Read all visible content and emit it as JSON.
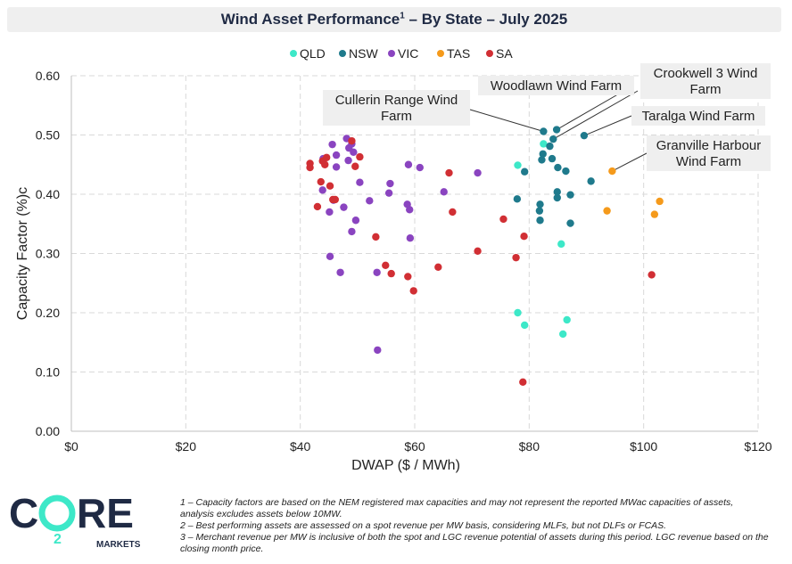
{
  "title": "Wind Asset Performance",
  "title_sup": "1",
  "title_rest": " – By State – July 2025",
  "colors": {
    "QLD": "#3de8c8",
    "NSW": "#1f7a8c",
    "VIC": "#8a44c0",
    "TAS": "#f59a1b",
    "SA": "#d12f34",
    "label_bg": "#efefef",
    "grid": "#d9d9d9"
  },
  "chart_data": {
    "type": "scatter",
    "title": "Wind Asset Performance¹ – By State – July 2025",
    "xlabel": "DWAP ($ / MWh)",
    "ylabel": "Capacity Factor (%)c",
    "xlim": [
      0,
      120
    ],
    "ylim": [
      0,
      0.6
    ],
    "x_ticks": [
      0,
      20,
      40,
      60,
      80,
      100,
      120
    ],
    "x_tick_labels": [
      "$0",
      "$20",
      "$40",
      "$60",
      "$80",
      "$100",
      "$120"
    ],
    "y_ticks": [
      0,
      0.1,
      0.2,
      0.3,
      0.4,
      0.5,
      0.6
    ],
    "y_tick_labels": [
      "0.00",
      "0.10",
      "0.20",
      "0.30",
      "0.40",
      "0.50",
      "0.60"
    ],
    "grid": true,
    "legend_position": "top-center",
    "series": [
      {
        "name": "QLD",
        "points": [
          [
            82.5,
            0.485
          ],
          [
            78.0,
            0.449
          ],
          [
            85.6,
            0.316
          ],
          [
            78.0,
            0.2
          ],
          [
            79.2,
            0.179
          ],
          [
            86.6,
            0.188
          ],
          [
            85.9,
            0.164
          ]
        ]
      },
      {
        "name": "NSW",
        "points": [
          [
            82.5,
            0.506
          ],
          [
            84.8,
            0.509
          ],
          [
            84.2,
            0.493
          ],
          [
            83.6,
            0.481
          ],
          [
            89.6,
            0.499
          ],
          [
            82.4,
            0.468
          ],
          [
            82.2,
            0.458
          ],
          [
            84.0,
            0.46
          ],
          [
            79.2,
            0.438
          ],
          [
            85.0,
            0.445
          ],
          [
            86.4,
            0.439
          ],
          [
            90.8,
            0.422
          ],
          [
            84.9,
            0.404
          ],
          [
            87.2,
            0.399
          ],
          [
            84.9,
            0.394
          ],
          [
            77.9,
            0.392
          ],
          [
            81.9,
            0.383
          ],
          [
            81.8,
            0.372
          ],
          [
            81.9,
            0.356
          ],
          [
            87.2,
            0.351
          ]
        ]
      },
      {
        "name": "VIC",
        "points": [
          [
            48.1,
            0.494
          ],
          [
            49.0,
            0.485
          ],
          [
            45.6,
            0.484
          ],
          [
            48.5,
            0.478
          ],
          [
            49.3,
            0.471
          ],
          [
            44.0,
            0.46
          ],
          [
            46.3,
            0.466
          ],
          [
            48.4,
            0.457
          ],
          [
            46.3,
            0.446
          ],
          [
            58.9,
            0.45
          ],
          [
            60.9,
            0.445
          ],
          [
            71.0,
            0.436
          ],
          [
            50.4,
            0.42
          ],
          [
            55.7,
            0.418
          ],
          [
            55.5,
            0.402
          ],
          [
            65.1,
            0.404
          ],
          [
            43.9,
            0.407
          ],
          [
            58.7,
            0.383
          ],
          [
            52.1,
            0.389
          ],
          [
            45.8,
            0.39
          ],
          [
            59.1,
            0.374
          ],
          [
            47.6,
            0.378
          ],
          [
            45.1,
            0.37
          ],
          [
            49.7,
            0.356
          ],
          [
            49.0,
            0.337
          ],
          [
            59.2,
            0.326
          ],
          [
            45.2,
            0.295
          ],
          [
            47.0,
            0.268
          ],
          [
            53.4,
            0.268
          ],
          [
            53.5,
            0.137
          ]
        ]
      },
      {
        "name": "TAS",
        "points": [
          [
            94.5,
            0.439
          ],
          [
            102.8,
            0.388
          ],
          [
            93.6,
            0.372
          ],
          [
            101.9,
            0.366
          ]
        ]
      },
      {
        "name": "SA",
        "points": [
          [
            41.7,
            0.452
          ],
          [
            41.7,
            0.445
          ],
          [
            43.9,
            0.456
          ],
          [
            44.6,
            0.462
          ],
          [
            44.3,
            0.45
          ],
          [
            49.0,
            0.49
          ],
          [
            49.6,
            0.447
          ],
          [
            50.4,
            0.463
          ],
          [
            66.0,
            0.436
          ],
          [
            43.6,
            0.421
          ],
          [
            45.2,
            0.414
          ],
          [
            45.7,
            0.391
          ],
          [
            46.1,
            0.391
          ],
          [
            43.0,
            0.379
          ],
          [
            66.6,
            0.37
          ],
          [
            75.5,
            0.358
          ],
          [
            53.2,
            0.328
          ],
          [
            79.1,
            0.329
          ],
          [
            71.0,
            0.304
          ],
          [
            77.7,
            0.293
          ],
          [
            54.9,
            0.28
          ],
          [
            64.1,
            0.277
          ],
          [
            55.9,
            0.266
          ],
          [
            58.8,
            0.261
          ],
          [
            59.8,
            0.237
          ],
          [
            101.4,
            0.264
          ],
          [
            78.9,
            0.083
          ]
        ]
      }
    ],
    "annotations": [
      {
        "lines": [
          "Woodlawn Wind Farm"
        ],
        "point": [
          84.8,
          0.509
        ]
      },
      {
        "lines": [
          "Crookwell 3 Wind",
          "Farm"
        ],
        "point": [
          84.2,
          0.493
        ]
      },
      {
        "lines": [
          "Cullerin Range Wind",
          "Farm"
        ],
        "point": [
          82.5,
          0.506
        ]
      },
      {
        "lines": [
          "Taralga Wind Farm"
        ],
        "point": [
          89.6,
          0.499
        ]
      },
      {
        "lines": [
          "Granville Harbour",
          "Wind Farm"
        ],
        "point": [
          94.5,
          0.439
        ]
      }
    ]
  },
  "logo": {
    "text": "CO2RE",
    "sub": "MARKETS"
  },
  "notes": [
    "1 – Capacity factors are based on the NEM registered max capacities and may not represent the reported MWac capacities of assets, analysis excludes assets below 10MW.",
    "2 – Best performing assets are assessed on a spot revenue per MW basis, considering MLFs, but not DLFs or FCAS.",
    "3 – Merchant revenue per MW is inclusive of both the spot and LGC revenue potential of assets during this period. LGC revenue based on the closing month price."
  ]
}
